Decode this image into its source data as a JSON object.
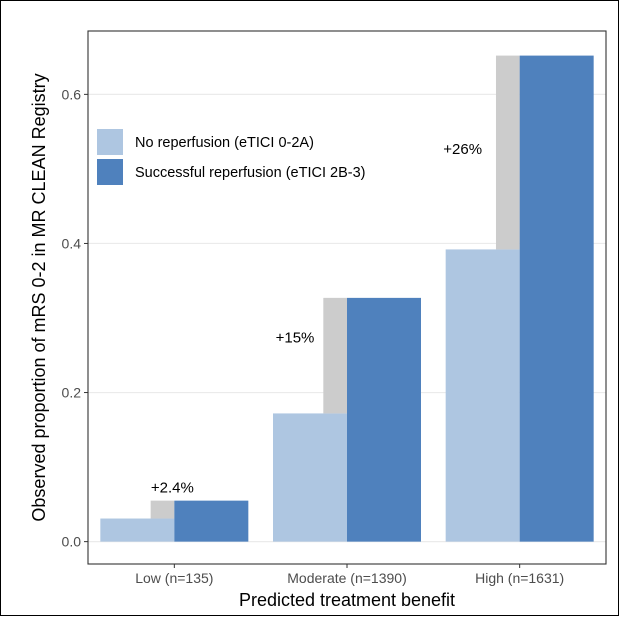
{
  "chart_data": {
    "type": "bar",
    "title": "",
    "xlabel": "Predicted treatment benefit",
    "ylabel": "Observed proportion of mRS 0-2 in MR CLEAN Registry",
    "categories": [
      "Low (n=135)",
      "Moderate (n=1390)",
      "High (n=1631)"
    ],
    "series": [
      {
        "name": "No reperfusion (eTICI 0-2A)",
        "color": "#aec6e1",
        "values": [
          0.031,
          0.172,
          0.392
        ]
      },
      {
        "name": "Successful reperfusion (eTICI 2B-3)",
        "color": "#4f81bd",
        "values": [
          0.055,
          0.327,
          0.652
        ]
      }
    ],
    "difference_color": "#cccccc",
    "annotations": [
      "+2.4%",
      "+15%",
      "+26%"
    ],
    "yticks": [
      "0.0",
      "0.2",
      "0.4",
      "0.6"
    ],
    "ytick_values": [
      0.0,
      0.2,
      0.4,
      0.6
    ],
    "ylim": [
      -0.03,
      0.685
    ],
    "grid": true,
    "legend_position": "top-left"
  }
}
